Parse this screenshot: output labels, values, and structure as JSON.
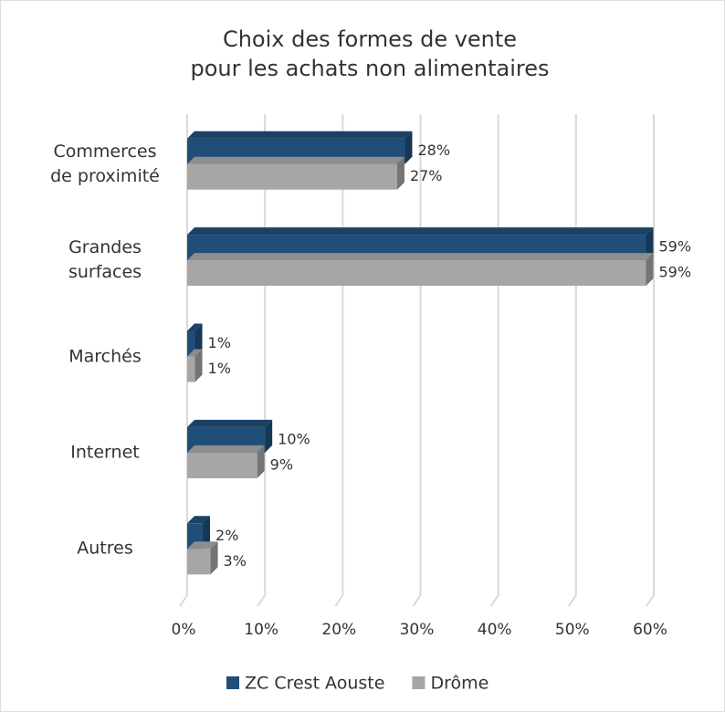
{
  "chart_data": {
    "type": "bar3d_horizontal",
    "title": [
      "Choix des formes de vente",
      "pour les achats non alimentaires"
    ],
    "categories": [
      "Commerces de proximité",
      "Grandes surfaces",
      "Marchés",
      "Internet",
      "Autres"
    ],
    "series": [
      {
        "name": "ZC Crest Aouste",
        "color": "#1f4e79",
        "values": [
          28,
          59,
          1,
          10,
          2
        ],
        "value_labels": [
          "28%",
          "59%",
          "1%",
          "10%",
          "2%"
        ]
      },
      {
        "name": "Drôme",
        "color": "#a6a6a6",
        "values": [
          27,
          59,
          1,
          9,
          3
        ],
        "value_labels": [
          "27%",
          "59%",
          "1%",
          "9%",
          "3%"
        ]
      }
    ],
    "xlim": [
      0,
      60
    ],
    "xticks": [
      {
        "value": 0,
        "label": "0%"
      },
      {
        "value": 10,
        "label": "10%"
      },
      {
        "value": 20,
        "label": "20%"
      },
      {
        "value": 30,
        "label": "30%"
      },
      {
        "value": 40,
        "label": "40%"
      },
      {
        "value": 50,
        "label": "50%"
      },
      {
        "value": 60,
        "label": "60%"
      }
    ],
    "grid": true,
    "legend": "bottom"
  }
}
